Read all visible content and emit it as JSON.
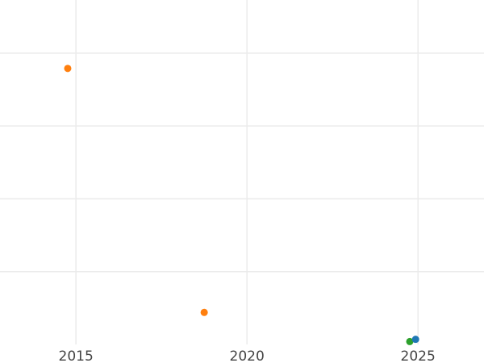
{
  "chart_data": {
    "type": "scatter",
    "title": "",
    "xlabel": "",
    "ylabel": "",
    "xlim": [
      2012.78,
      2026.93
    ],
    "ylim": [
      0,
      4.73
    ],
    "x_ticks": [
      2015,
      2020,
      2025
    ],
    "x_tick_labels": [
      "2015",
      "2020",
      "2025"
    ],
    "y_gridlines": [
      1,
      2,
      3,
      4
    ],
    "y_tick_labels": [],
    "grid": true,
    "points": [
      {
        "x": 2014.76,
        "y": 3.79,
        "color": "#ff7f0e"
      },
      {
        "x": 2018.75,
        "y": 0.44,
        "color": "#ff7f0e"
      },
      {
        "x": 2024.76,
        "y": 0.04,
        "color": "#2ca02c"
      },
      {
        "x": 2024.93,
        "y": 0.07,
        "color": "#1f77b4"
      }
    ]
  }
}
